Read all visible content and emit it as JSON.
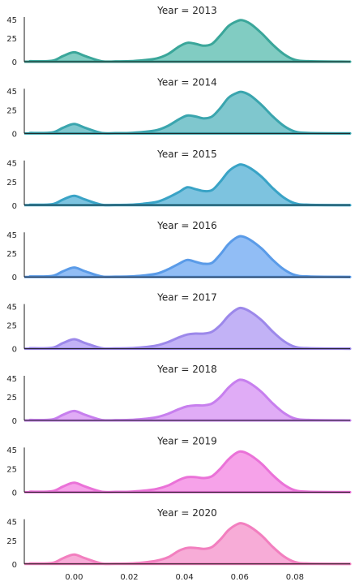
{
  "chart_data": {
    "type": "area",
    "layout": "ridgeline small multiples (one panel per year), shared x axis",
    "grid": false,
    "x_range": [
      -0.018,
      0.1
    ],
    "x_ticks": [
      0.0,
      0.02,
      0.04,
      0.06,
      0.08
    ],
    "x_tick_labels": [
      "0.00",
      "0.02",
      "0.04",
      "0.06",
      "0.08"
    ],
    "y_range": [
      0,
      45
    ],
    "y_ticks": [
      0,
      25
    ],
    "y_tick_labels": [
      "0",
      "25"
    ],
    "panels": [
      {
        "title": "Year = 2013",
        "color": "#3aa69a",
        "fill": "#7ac9bf",
        "x": [
          -0.016,
          -0.008,
          -0.004,
          0.0,
          0.004,
          0.01,
          0.015,
          0.02,
          0.025,
          0.03,
          0.034,
          0.038,
          0.041,
          0.044,
          0.047,
          0.05,
          0.053,
          0.056,
          0.059,
          0.061,
          0.064,
          0.068,
          0.072,
          0.076,
          0.08,
          0.085,
          0.1
        ],
        "y": [
          0.5,
          1,
          6,
          10,
          6,
          0.5,
          0.3,
          0.5,
          1.5,
          3.5,
          8,
          16,
          20,
          19,
          17,
          19,
          28,
          38,
          43,
          44,
          40,
          30,
          18,
          8,
          2,
          0.5,
          0
        ]
      },
      {
        "title": "Year = 2014",
        "color": "#3aa5ae",
        "fill": "#78c4cb",
        "x": [
          -0.016,
          -0.008,
          -0.004,
          0.0,
          0.004,
          0.01,
          0.015,
          0.02,
          0.025,
          0.03,
          0.034,
          0.038,
          0.041,
          0.044,
          0.047,
          0.05,
          0.053,
          0.056,
          0.059,
          0.061,
          0.064,
          0.068,
          0.072,
          0.076,
          0.08,
          0.085,
          0.1
        ],
        "y": [
          0.5,
          1,
          6,
          10,
          6,
          0.5,
          0.3,
          0.5,
          1.5,
          3.5,
          8,
          15,
          19,
          18,
          16,
          18,
          27,
          38,
          43,
          44,
          40,
          30,
          18,
          8,
          2,
          0.5,
          0
        ]
      },
      {
        "title": "Year = 2015",
        "color": "#39a3c6",
        "fill": "#76c0dd",
        "x": [
          -0.016,
          -0.008,
          -0.004,
          0.0,
          0.004,
          0.01,
          0.015,
          0.02,
          0.025,
          0.03,
          0.034,
          0.038,
          0.041,
          0.044,
          0.047,
          0.05,
          0.053,
          0.056,
          0.059,
          0.061,
          0.064,
          0.068,
          0.072,
          0.076,
          0.08,
          0.085,
          0.1
        ],
        "y": [
          0.5,
          1,
          6,
          10,
          6,
          0.5,
          0.3,
          0.5,
          1.5,
          3.5,
          8,
          14,
          19,
          17,
          15,
          16,
          25,
          36,
          42,
          43,
          39,
          30,
          18,
          8,
          2,
          0.5,
          0
        ]
      },
      {
        "title": "Year = 2016",
        "color": "#5a9be8",
        "fill": "#8bb9f4",
        "x": [
          -0.016,
          -0.008,
          -0.004,
          0.0,
          0.004,
          0.01,
          0.015,
          0.02,
          0.025,
          0.03,
          0.034,
          0.038,
          0.041,
          0.044,
          0.047,
          0.05,
          0.053,
          0.056,
          0.059,
          0.061,
          0.064,
          0.068,
          0.072,
          0.076,
          0.08,
          0.085,
          0.1
        ],
        "y": [
          0.5,
          1,
          6,
          10,
          6,
          0.5,
          0.3,
          0.5,
          1.5,
          3.5,
          8,
          14,
          18,
          16,
          14,
          15,
          24,
          35,
          42,
          43,
          39,
          30,
          18,
          8,
          2,
          0.5,
          0
        ]
      },
      {
        "title": "Year = 2017",
        "color": "#9c88ea",
        "fill": "#bfaef5",
        "x": [
          -0.016,
          -0.008,
          -0.004,
          0.0,
          0.004,
          0.01,
          0.015,
          0.02,
          0.025,
          0.03,
          0.034,
          0.038,
          0.041,
          0.044,
          0.047,
          0.05,
          0.053,
          0.056,
          0.059,
          0.061,
          0.064,
          0.068,
          0.072,
          0.076,
          0.08,
          0.085,
          0.1
        ],
        "y": [
          0.5,
          1,
          6,
          10,
          6,
          0.5,
          0.3,
          0.5,
          1.5,
          3.5,
          7,
          12,
          15,
          16,
          16,
          18,
          25,
          35,
          42,
          43,
          39,
          30,
          18,
          8,
          2,
          0.5,
          0
        ]
      },
      {
        "title": "Year = 2018",
        "color": "#c77fee",
        "fill": "#dea8f5",
        "x": [
          -0.016,
          -0.008,
          -0.004,
          0.0,
          0.004,
          0.01,
          0.015,
          0.02,
          0.025,
          0.03,
          0.034,
          0.038,
          0.041,
          0.044,
          0.047,
          0.05,
          0.053,
          0.056,
          0.059,
          0.061,
          0.064,
          0.068,
          0.072,
          0.076,
          0.08,
          0.085,
          0.1
        ],
        "y": [
          0.5,
          1,
          6,
          10,
          6,
          0.5,
          0.3,
          0.5,
          1.5,
          3.5,
          7,
          12,
          15,
          16,
          16,
          18,
          25,
          35,
          42,
          43,
          39,
          30,
          18,
          8,
          2,
          0.5,
          0
        ]
      },
      {
        "title": "Year = 2019",
        "color": "#ea72d8",
        "fill": "#f59de8",
        "x": [
          -0.016,
          -0.008,
          -0.004,
          0.0,
          0.004,
          0.01,
          0.015,
          0.02,
          0.025,
          0.03,
          0.034,
          0.038,
          0.041,
          0.044,
          0.047,
          0.05,
          0.053,
          0.056,
          0.059,
          0.061,
          0.064,
          0.068,
          0.072,
          0.076,
          0.08,
          0.085,
          0.1
        ],
        "y": [
          0.5,
          1,
          6,
          10,
          6,
          0.5,
          0.3,
          0.5,
          1.5,
          3.5,
          7,
          13,
          16,
          16,
          15,
          17,
          25,
          35,
          42,
          43,
          39,
          30,
          18,
          8,
          2,
          0.5,
          0
        ]
      },
      {
        "title": "Year = 2020",
        "color": "#f27fbf",
        "fill": "#f7a8d5",
        "x": [
          -0.016,
          -0.008,
          -0.004,
          0.0,
          0.004,
          0.01,
          0.015,
          0.02,
          0.025,
          0.03,
          0.034,
          0.038,
          0.041,
          0.044,
          0.047,
          0.05,
          0.053,
          0.056,
          0.059,
          0.061,
          0.064,
          0.068,
          0.072,
          0.076,
          0.08,
          0.085,
          0.1
        ],
        "y": [
          0.5,
          1,
          6,
          10,
          6,
          0.5,
          0.3,
          0.5,
          1.5,
          3.5,
          7,
          14,
          17,
          17,
          16,
          18,
          26,
          36,
          42,
          43,
          39,
          30,
          18,
          8,
          2,
          0.5,
          0
        ]
      }
    ]
  }
}
